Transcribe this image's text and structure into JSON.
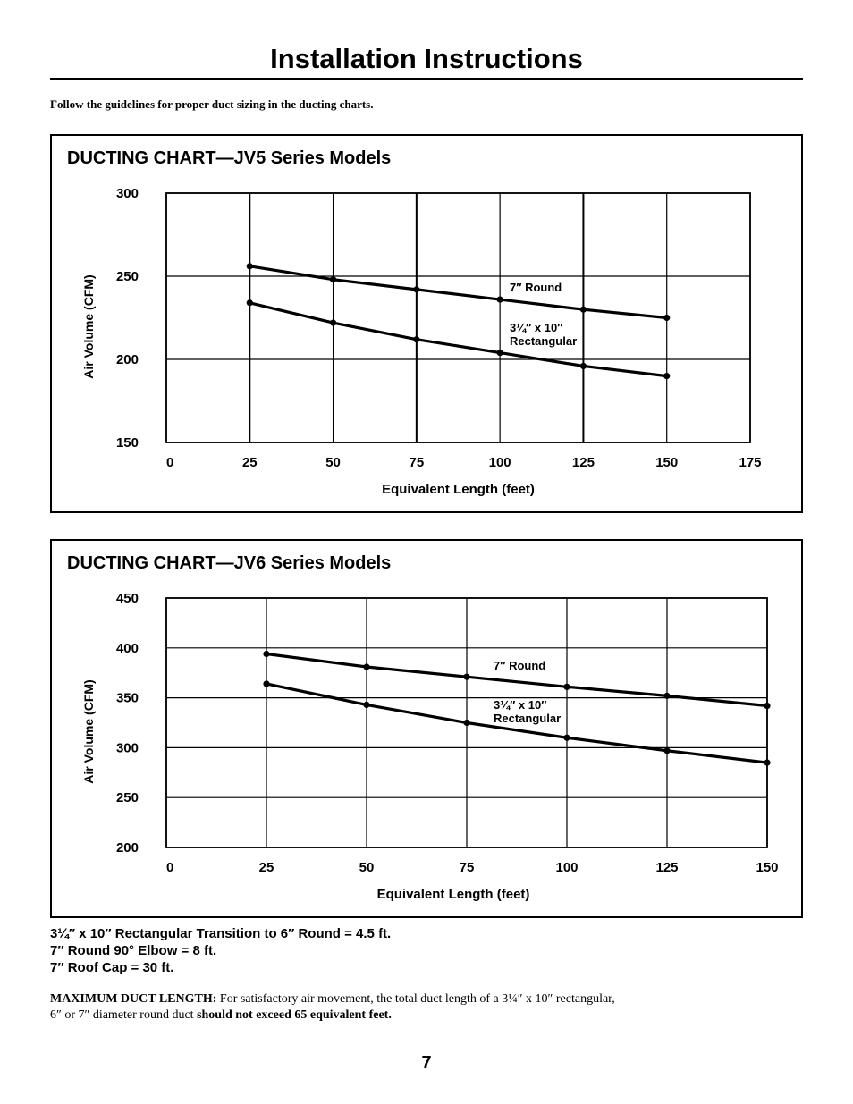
{
  "page": {
    "title": "Installation Instructions",
    "intro": "Follow the guidelines for proper duct sizing in the ducting charts.",
    "notes": [
      "3¼″ x 10″ Rectangular Transition to 6″ Round = 4.5 ft.",
      "7″ Round 90° Elbow = 8 ft.",
      "7″ Roof Cap = 30 ft."
    ],
    "max_duct": {
      "label": "MAXIMUM DUCT LENGTH:",
      "text1": " For satisfactory air movement, the total duct length of a 3¼″ x 10″ rectangular,",
      "text2": "6″ or 7″ diameter round duct ",
      "bold_end": "should not exceed 65 equivalent feet."
    },
    "page_number": "7"
  },
  "chart_data": [
    {
      "type": "line",
      "title": "DUCTING CHART—JV5 Series Models",
      "xlabel": "Equivalent Length (feet)",
      "ylabel": "Air Volume (CFM)",
      "xlim": [
        0,
        175
      ],
      "ylim": [
        150,
        300
      ],
      "xticks": [
        0,
        25,
        50,
        75,
        100,
        125,
        150,
        175
      ],
      "yticks": [
        150,
        200,
        250,
        300
      ],
      "grid": true,
      "series": [
        {
          "name": "7″ Round",
          "x": [
            25,
            50,
            75,
            100,
            125,
            150
          ],
          "values": [
            256,
            248,
            242,
            236,
            230,
            225
          ]
        },
        {
          "name": "3¼″ x 10″ Rectangular",
          "x": [
            25,
            50,
            75,
            100,
            125,
            150
          ],
          "values": [
            234,
            222,
            212,
            204,
            196,
            190
          ]
        }
      ]
    },
    {
      "type": "line",
      "title": "DUCTING CHART—JV6 Series Models",
      "xlabel": "Equivalent Length (feet)",
      "ylabel": "Air Volume (CFM)",
      "xlim": [
        0,
        150
      ],
      "ylim": [
        200,
        450
      ],
      "xticks": [
        0,
        25,
        50,
        75,
        100,
        125,
        150
      ],
      "yticks": [
        200,
        250,
        300,
        350,
        400,
        450
      ],
      "grid": true,
      "series": [
        {
          "name": "7″ Round",
          "x": [
            25,
            50,
            75,
            100,
            125,
            150
          ],
          "values": [
            394,
            381,
            371,
            361,
            352,
            342
          ]
        },
        {
          "name": "3¼″ x 10″ Rectangular",
          "x": [
            25,
            50,
            75,
            100,
            125,
            150
          ],
          "values": [
            364,
            343,
            325,
            310,
            297,
            285
          ]
        }
      ]
    }
  ]
}
